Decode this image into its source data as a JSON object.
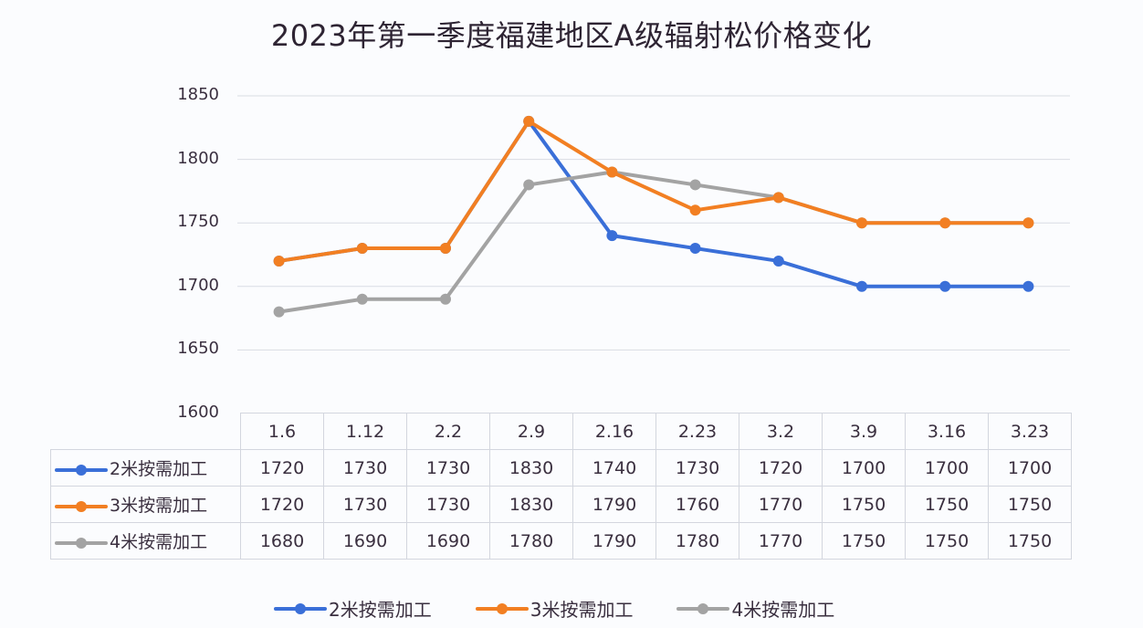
{
  "chart_data": {
    "type": "line",
    "title": "2023年第一季度福建地区A级辐射松价格变化",
    "xlabel": "",
    "ylabel": "",
    "ylim": [
      1600,
      1850
    ],
    "yticks": [
      1850,
      1800,
      1750,
      1700,
      1650,
      1600
    ],
    "grid": true,
    "legend_position": "bottom",
    "data_table": true,
    "categories": [
      "1.6",
      "1.12",
      "2.2",
      "2.9",
      "2.16",
      "2.23",
      "3.2",
      "3.9",
      "3.16",
      "3.23"
    ],
    "series": [
      {
        "name": "2米按需加工",
        "color": "#3a6fd8",
        "values": [
          1720,
          1730,
          1730,
          1830,
          1740,
          1730,
          1720,
          1700,
          1700,
          1700
        ]
      },
      {
        "name": "3米按需加工",
        "color": "#f27f22",
        "values": [
          1720,
          1730,
          1730,
          1830,
          1790,
          1760,
          1770,
          1750,
          1750,
          1750
        ]
      },
      {
        "name": "4米按需加工",
        "color": "#a3a3a3",
        "values": [
          1680,
          1690,
          1690,
          1780,
          1790,
          1780,
          1770,
          1750,
          1750,
          1750
        ]
      }
    ]
  }
}
